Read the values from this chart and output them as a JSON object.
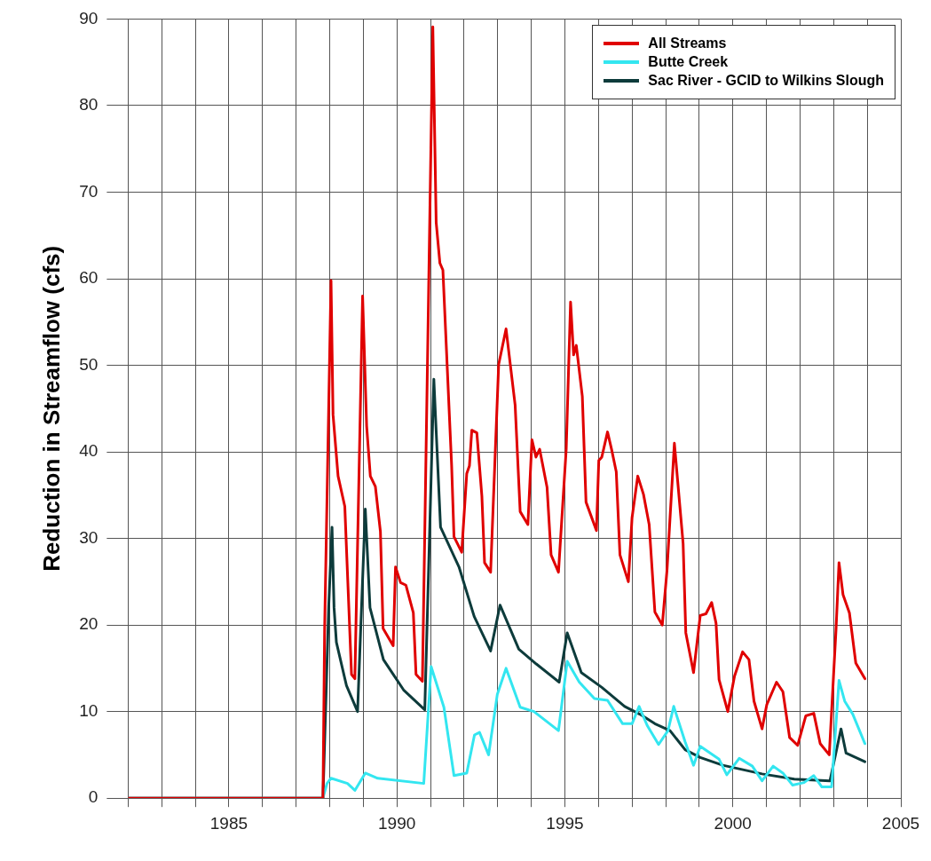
{
  "chart_data": {
    "type": "line",
    "ylabel": "Reduction in Streamflow (cfs)",
    "xlim": [
      1982,
      2005
    ],
    "ylim": [
      0,
      90
    ],
    "xticks": [
      {
        "value": 1982,
        "label": null
      },
      {
        "value": 1983,
        "label": null
      },
      {
        "value": 1984,
        "label": null
      },
      1985,
      {
        "value": 1986,
        "label": null
      },
      {
        "value": 1987,
        "label": null
      },
      {
        "value": 1988,
        "label": null
      },
      {
        "value": 1989,
        "label": null
      },
      1990,
      {
        "value": 1991,
        "label": null
      },
      {
        "value": 1992,
        "label": null
      },
      {
        "value": 1993,
        "label": null
      },
      {
        "value": 1994,
        "label": null
      },
      1995,
      {
        "value": 1996,
        "label": null
      },
      {
        "value": 1997,
        "label": null
      },
      {
        "value": 1998,
        "label": null
      },
      {
        "value": 1999,
        "label": null
      },
      2000,
      {
        "value": 2001,
        "label": null
      },
      {
        "value": 2002,
        "label": null
      },
      {
        "value": 2003,
        "label": null
      },
      {
        "value": 2004,
        "label": null
      },
      2005
    ],
    "yticks": [
      0,
      10,
      20,
      30,
      40,
      50,
      60,
      70,
      80,
      90
    ],
    "grid": true,
    "legend": "top right",
    "marker": "none",
    "line_style": "solid",
    "series": [
      {
        "name": "All Streams",
        "color": "#e00000",
        "x": [
          1982,
          1987.8,
          1987.85,
          1988.04,
          1988.1,
          1988.25,
          1988.45,
          1988.65,
          1988.75,
          1988.98,
          1989.1,
          1989.21,
          1989.36,
          1989.51,
          1989.59,
          1989.89,
          1989.96,
          1990.11,
          1990.27,
          1990.49,
          1990.57,
          1990.76,
          1991.07,
          1991.17,
          1991.28,
          1991.37,
          1991.63,
          1991.7,
          1991.93,
          1992.08,
          1992.16,
          1992.23,
          1992.38,
          1992.53,
          1992.61,
          1992.79,
          1993.03,
          1993.25,
          1993.52,
          1993.67,
          1993.9,
          1994.02,
          1994.14,
          1994.25,
          1994.47,
          1994.59,
          1994.81,
          1995.04,
          1995.17,
          1995.26,
          1995.34,
          1995.52,
          1995.63,
          1995.94,
          1996.01,
          1996.1,
          1996.27,
          1996.39,
          1996.53,
          1996.64,
          1996.89,
          1997,
          1997.17,
          1997.34,
          1997.51,
          1997.68,
          1997.9,
          1998.04,
          1998.26,
          1998.52,
          1998.6,
          1998.83,
          1999.03,
          1999.2,
          1999.37,
          1999.5,
          1999.59,
          1999.85,
          2000.05,
          2000.29,
          2000.48,
          2000.63,
          2000.87,
          2001.01,
          2001.3,
          2001.49,
          2001.69,
          2001.93,
          2002.17,
          2002.41,
          2002.6,
          2002.87,
          2003.07,
          2003.16,
          2003.28,
          2003.47,
          2003.66,
          2003.93
        ],
        "values": [
          0,
          0,
          19.6,
          59.8,
          44.3,
          37.2,
          33.7,
          14.3,
          13.8,
          58,
          43,
          37.2,
          36,
          30.8,
          19.6,
          17.6,
          26.7,
          24.9,
          24.6,
          21.4,
          14.3,
          13.5,
          89.1,
          66.5,
          61.8,
          61,
          38.4,
          30.2,
          28.4,
          37.5,
          38.4,
          42.5,
          42.2,
          34.9,
          27.2,
          26.1,
          50.1,
          54.2,
          45.4,
          33.1,
          31.6,
          41.4,
          39.4,
          40.3,
          35.9,
          28.1,
          26.1,
          40.3,
          57.3,
          51.2,
          52.3,
          46.4,
          34.2,
          30.9,
          39,
          39.4,
          42.3,
          40.3,
          37.7,
          28.1,
          25,
          32.4,
          37.2,
          35.1,
          31.6,
          21.5,
          20,
          26.3,
          41,
          29.4,
          19.1,
          14.5,
          21.1,
          21.3,
          22.6,
          20.2,
          13.7,
          10,
          14.1,
          16.9,
          16,
          11.2,
          8,
          10.8,
          13.4,
          12.3,
          7,
          6.1,
          9.5,
          9.8,
          6.3,
          5,
          19.4,
          27.2,
          23.5,
          21.4,
          15.6,
          13.8
        ]
      },
      {
        "name": "Butte Creek",
        "color": "#33e6f0",
        "x": [
          1982,
          1987.8,
          1987.92,
          1988.04,
          1988.53,
          1988.75,
          1989.06,
          1989.43,
          1990.8,
          1991.02,
          1991.4,
          1991.7,
          1992.08,
          1992.31,
          1992.46,
          1992.73,
          1992.99,
          1993.25,
          1993.67,
          1994.08,
          1994.81,
          1995.07,
          1995.43,
          1995.88,
          1996.27,
          1996.72,
          1997,
          1997.21,
          1997.45,
          1997.79,
          1998.07,
          1998.24,
          1998.58,
          1998.83,
          1999.03,
          1999.59,
          1999.82,
          2000.19,
          2000.58,
          2000.87,
          2001.2,
          2001.49,
          2001.78,
          2002.12,
          2002.41,
          2002.65,
          2002.94,
          2003.16,
          2003.33,
          2003.57,
          2003.93
        ],
        "values": [
          0,
          0,
          1.7,
          2.3,
          1.7,
          0.9,
          2.9,
          2.3,
          1.7,
          15.2,
          10.5,
          2.6,
          2.9,
          7.3,
          7.6,
          5,
          12,
          15,
          10.5,
          10,
          7.8,
          15.8,
          13.4,
          11.5,
          11.3,
          8.6,
          8.6,
          10.6,
          8.4,
          6.2,
          7.8,
          10.6,
          6.5,
          3.8,
          6,
          4.5,
          2.7,
          4.6,
          3.7,
          2,
          3.7,
          2.9,
          1.5,
          1.8,
          2.6,
          1.3,
          1.3,
          13.6,
          11.2,
          9.7,
          6.3
        ]
      },
      {
        "name": "Sac River - GCID to Wilkins Slough",
        "color": "#0d3b3b",
        "x": [
          1982,
          1987.8,
          1987.97,
          1988.07,
          1988.13,
          1988.2,
          1988.5,
          1988.83,
          1989.06,
          1989.2,
          1989.6,
          1990.2,
          1990.83,
          1991.1,
          1991.3,
          1991.85,
          1992.3,
          1992.79,
          1993.07,
          1993.63,
          1994.15,
          1994.83,
          1995.07,
          1995.49,
          1996.1,
          1996.78,
          1997.23,
          1997.68,
          1998.13,
          1998.58,
          1999.03,
          1999.7,
          2000.87,
          2001.83,
          2002.89,
          2003.22,
          2003.37,
          2003.93
        ],
        "values": [
          0,
          0,
          22,
          31.3,
          22,
          18,
          13,
          10,
          33.4,
          22,
          16,
          12.5,
          10.2,
          48.4,
          31.3,
          26.7,
          21,
          17,
          22.3,
          17.2,
          15.5,
          13.4,
          19.1,
          14.5,
          12.8,
          10.6,
          9.7,
          8.6,
          7.8,
          5.6,
          4.7,
          3.8,
          2.8,
          2.2,
          2,
          8,
          5.2,
          4.2
        ]
      }
    ]
  }
}
